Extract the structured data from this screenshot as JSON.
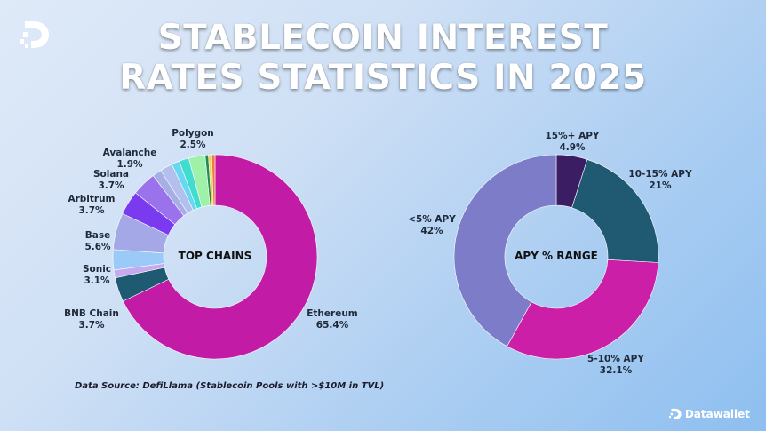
{
  "header": {
    "title_line1": "STABLECOIN INTEREST",
    "title_line2": "RATES STATISTICS IN 2025"
  },
  "footer": {
    "source": "Data Source: DefiLlama (Stablecoin Pools with >$10M in TVL)",
    "brand": "Datawallet"
  },
  "chart_data": [
    {
      "type": "pie",
      "center_label": "TOP CHAINS",
      "slices": [
        {
          "label": "Ethereum",
          "value": 65.4,
          "display": "65.4%",
          "color": "#c21ca6",
          "labeled": true
        },
        {
          "label": "BNB Chain",
          "value": 3.7,
          "display": "3.7%",
          "color": "#1e5a72",
          "labeled": true
        },
        {
          "label": "",
          "value": 1.2,
          "display": "",
          "color": "#c6a9ee",
          "labeled": false
        },
        {
          "label": "Sonic",
          "value": 3.1,
          "display": "3.1%",
          "color": "#9ccaf8",
          "labeled": true
        },
        {
          "label": "Base",
          "value": 5.6,
          "display": "5.6%",
          "color": "#a4a8e6",
          "labeled": true
        },
        {
          "label": "Arbitrum",
          "value": 3.7,
          "display": "3.7%",
          "color": "#7a3af0",
          "labeled": true
        },
        {
          "label": "Solana",
          "value": 3.7,
          "display": "3.7%",
          "color": "#9a72ec",
          "labeled": true
        },
        {
          "label": "",
          "value": 1.4,
          "display": "",
          "color": "#a7aee4",
          "labeled": false
        },
        {
          "label": "Avalanche",
          "value": 1.9,
          "display": "1.9%",
          "color": "#b3c0ee",
          "labeled": true
        },
        {
          "label": "",
          "value": 1.2,
          "display": "",
          "color": "#6ad7f0",
          "labeled": false
        },
        {
          "label": "",
          "value": 1.5,
          "display": "",
          "color": "#40dccf",
          "labeled": false
        },
        {
          "label": "Polygon",
          "value": 2.5,
          "display": "2.5%",
          "color": "#9ff0a8",
          "labeled": true
        },
        {
          "label": "",
          "value": 0.5,
          "display": "",
          "color": "#1f8a5a",
          "labeled": false
        },
        {
          "label": "",
          "value": 0.5,
          "display": "",
          "color": "#f4d13c",
          "labeled": false
        },
        {
          "label": "",
          "value": 0.5,
          "display": "",
          "color": "#f07b42",
          "labeled": false
        }
      ]
    },
    {
      "type": "pie",
      "center_label": "APY % RANGE",
      "slices": [
        {
          "label": "15%+ APY",
          "value": 4.9,
          "display": "4.9%",
          "color": "#3a1d63",
          "labeled": true
        },
        {
          "label": "10-15% APY",
          "value": 21,
          "display": "21%",
          "color": "#1f5a72",
          "labeled": true
        },
        {
          "label": "5-10% APY",
          "value": 32.1,
          "display": "32.1%",
          "color": "#cc1fa8",
          "labeled": true
        },
        {
          "label": "<5% APY",
          "value": 42,
          "display": "42%",
          "color": "#7d7cc8",
          "labeled": true
        }
      ]
    }
  ]
}
